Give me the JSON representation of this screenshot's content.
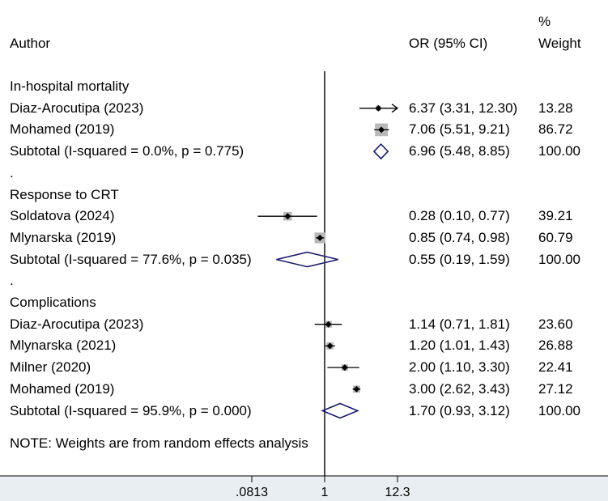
{
  "header": {
    "author_label": "Author",
    "or_label": "OR (95% CI)",
    "weight_label_line1": "%",
    "weight_label_line2": "Weight"
  },
  "note": "NOTE: Weights are from random effects analysis",
  "colors": {
    "marker": "#000000",
    "box": "#b8b8b8",
    "diamond": "#1a1a6e",
    "band": "#e9eef2"
  },
  "chart_data": {
    "type": "forest",
    "x_scale": "log",
    "x_ticks": [
      {
        "value": 0.0813,
        "label": ".0813"
      },
      {
        "value": 1,
        "label": "1"
      },
      {
        "value": 12.3,
        "label": "12.3"
      }
    ],
    "null_line": 1,
    "rows": [
      {
        "kind": "group",
        "label": "In-hospital mortality"
      },
      {
        "kind": "study",
        "label": "Diaz-Arocutipa (2023)",
        "or": 6.37,
        "lo": 3.31,
        "hi": 12.3,
        "ci_text": "6.37 (3.31, 12.30)",
        "weight": 13.28,
        "weight_text": "13.28",
        "arrow_right": true
      },
      {
        "kind": "study",
        "label": "Mohamed (2019)",
        "or": 7.06,
        "lo": 5.51,
        "hi": 9.21,
        "ci_text": "7.06 (5.51, 9.21)",
        "weight": 86.72,
        "weight_text": "86.72"
      },
      {
        "kind": "subtotal",
        "label": "Subtotal  (I-squared = 0.0%, p = 0.775)",
        "or": 6.96,
        "lo": 5.48,
        "hi": 8.85,
        "ci_text": "6.96 (5.48, 8.85)",
        "weight_text": "100.00"
      },
      {
        "kind": "spacer",
        "label": "."
      },
      {
        "kind": "group",
        "label": "Response to CRT"
      },
      {
        "kind": "study",
        "label": "Soldatova (2024)",
        "or": 0.28,
        "lo": 0.1,
        "hi": 0.77,
        "ci_text": "0.28 (0.10, 0.77)",
        "weight": 39.21,
        "weight_text": "39.21"
      },
      {
        "kind": "study",
        "label": "Mlynarska (2019)",
        "or": 0.85,
        "lo": 0.74,
        "hi": 0.98,
        "ci_text": "0.85 (0.74, 0.98)",
        "weight": 60.79,
        "weight_text": "60.79"
      },
      {
        "kind": "subtotal",
        "label": "Subtotal  (I-squared = 77.6%, p = 0.035)",
        "or": 0.55,
        "lo": 0.19,
        "hi": 1.59,
        "ci_text": "0.55 (0.19, 1.59)",
        "weight_text": "100.00"
      },
      {
        "kind": "spacer",
        "label": "."
      },
      {
        "kind": "group",
        "label": "Complications"
      },
      {
        "kind": "study",
        "label": "Diaz-Arocutipa (2023)",
        "or": 1.14,
        "lo": 0.71,
        "hi": 1.81,
        "ci_text": "1.14 (0.71, 1.81)",
        "weight": 23.6,
        "weight_text": "23.60"
      },
      {
        "kind": "study",
        "label": "Mlynarska (2021)",
        "or": 1.2,
        "lo": 1.01,
        "hi": 1.43,
        "ci_text": "1.20 (1.01, 1.43)",
        "weight": 26.88,
        "weight_text": "26.88"
      },
      {
        "kind": "study",
        "label": "Milner (2020)",
        "or": 2.0,
        "lo": 1.1,
        "hi": 3.3,
        "ci_text": "2.00 (1.10, 3.30)",
        "weight": 22.41,
        "weight_text": "22.41"
      },
      {
        "kind": "study",
        "label": "Mohamed (2019)",
        "or": 3.0,
        "lo": 2.62,
        "hi": 3.43,
        "ci_text": "3.00 (2.62, 3.43)",
        "weight": 27.12,
        "weight_text": "27.12"
      },
      {
        "kind": "subtotal",
        "label": "Subtotal  (I-squared = 95.9%, p = 0.000)",
        "or": 1.7,
        "lo": 0.93,
        "hi": 3.12,
        "ci_text": "1.70 (0.93, 3.12)",
        "weight_text": "100.00"
      }
    ]
  }
}
